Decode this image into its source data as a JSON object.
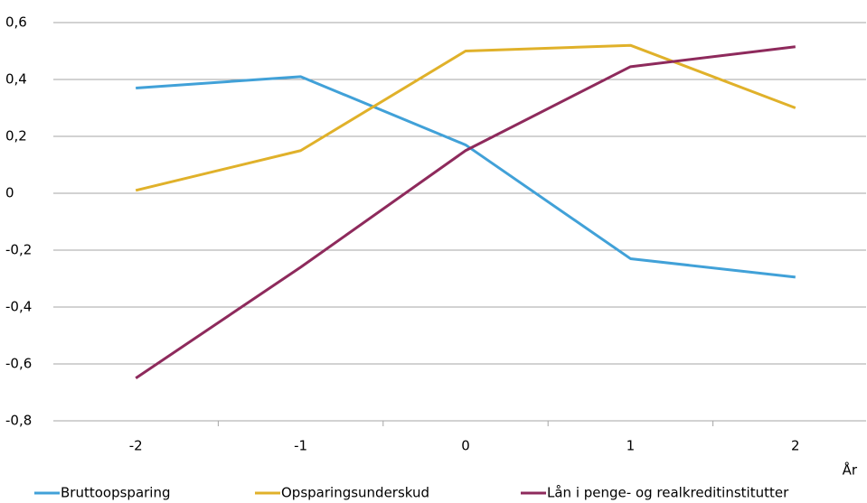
{
  "chart_data": {
    "type": "line",
    "categories": [
      "-2",
      "-1",
      "0",
      "1",
      "2"
    ],
    "x_label": "År",
    "series": [
      {
        "name": "Bruttoopsparing",
        "color": "#41a1d8",
        "values": [
          0.37,
          0.41,
          0.17,
          -0.23,
          -0.295
        ]
      },
      {
        "name": "Opsparingsunderskud",
        "color": "#e0b12a",
        "values": [
          0.01,
          0.15,
          0.5,
          0.52,
          0.3
        ]
      },
      {
        "name": "Lån i penge- og realkreditinstitutter",
        "color": "#8e2a5c",
        "values": [
          -0.65,
          -0.26,
          0.15,
          0.445,
          0.515
        ]
      }
    ],
    "ylim": [
      -0.8,
      0.6
    ],
    "yticks": [
      {
        "value": -0.8,
        "label": "-0,8"
      },
      {
        "value": -0.6,
        "label": "-0,6"
      },
      {
        "value": -0.4,
        "label": "-0,4"
      },
      {
        "value": -0.2,
        "label": "-0,2"
      },
      0,
      {
        "value": 0.2,
        "label": "0,2"
      },
      {
        "value": 0.4,
        "label": "0,4"
      },
      {
        "value": 0.6,
        "label": "0,6"
      }
    ],
    "grid": true,
    "legend": "bottom"
  }
}
